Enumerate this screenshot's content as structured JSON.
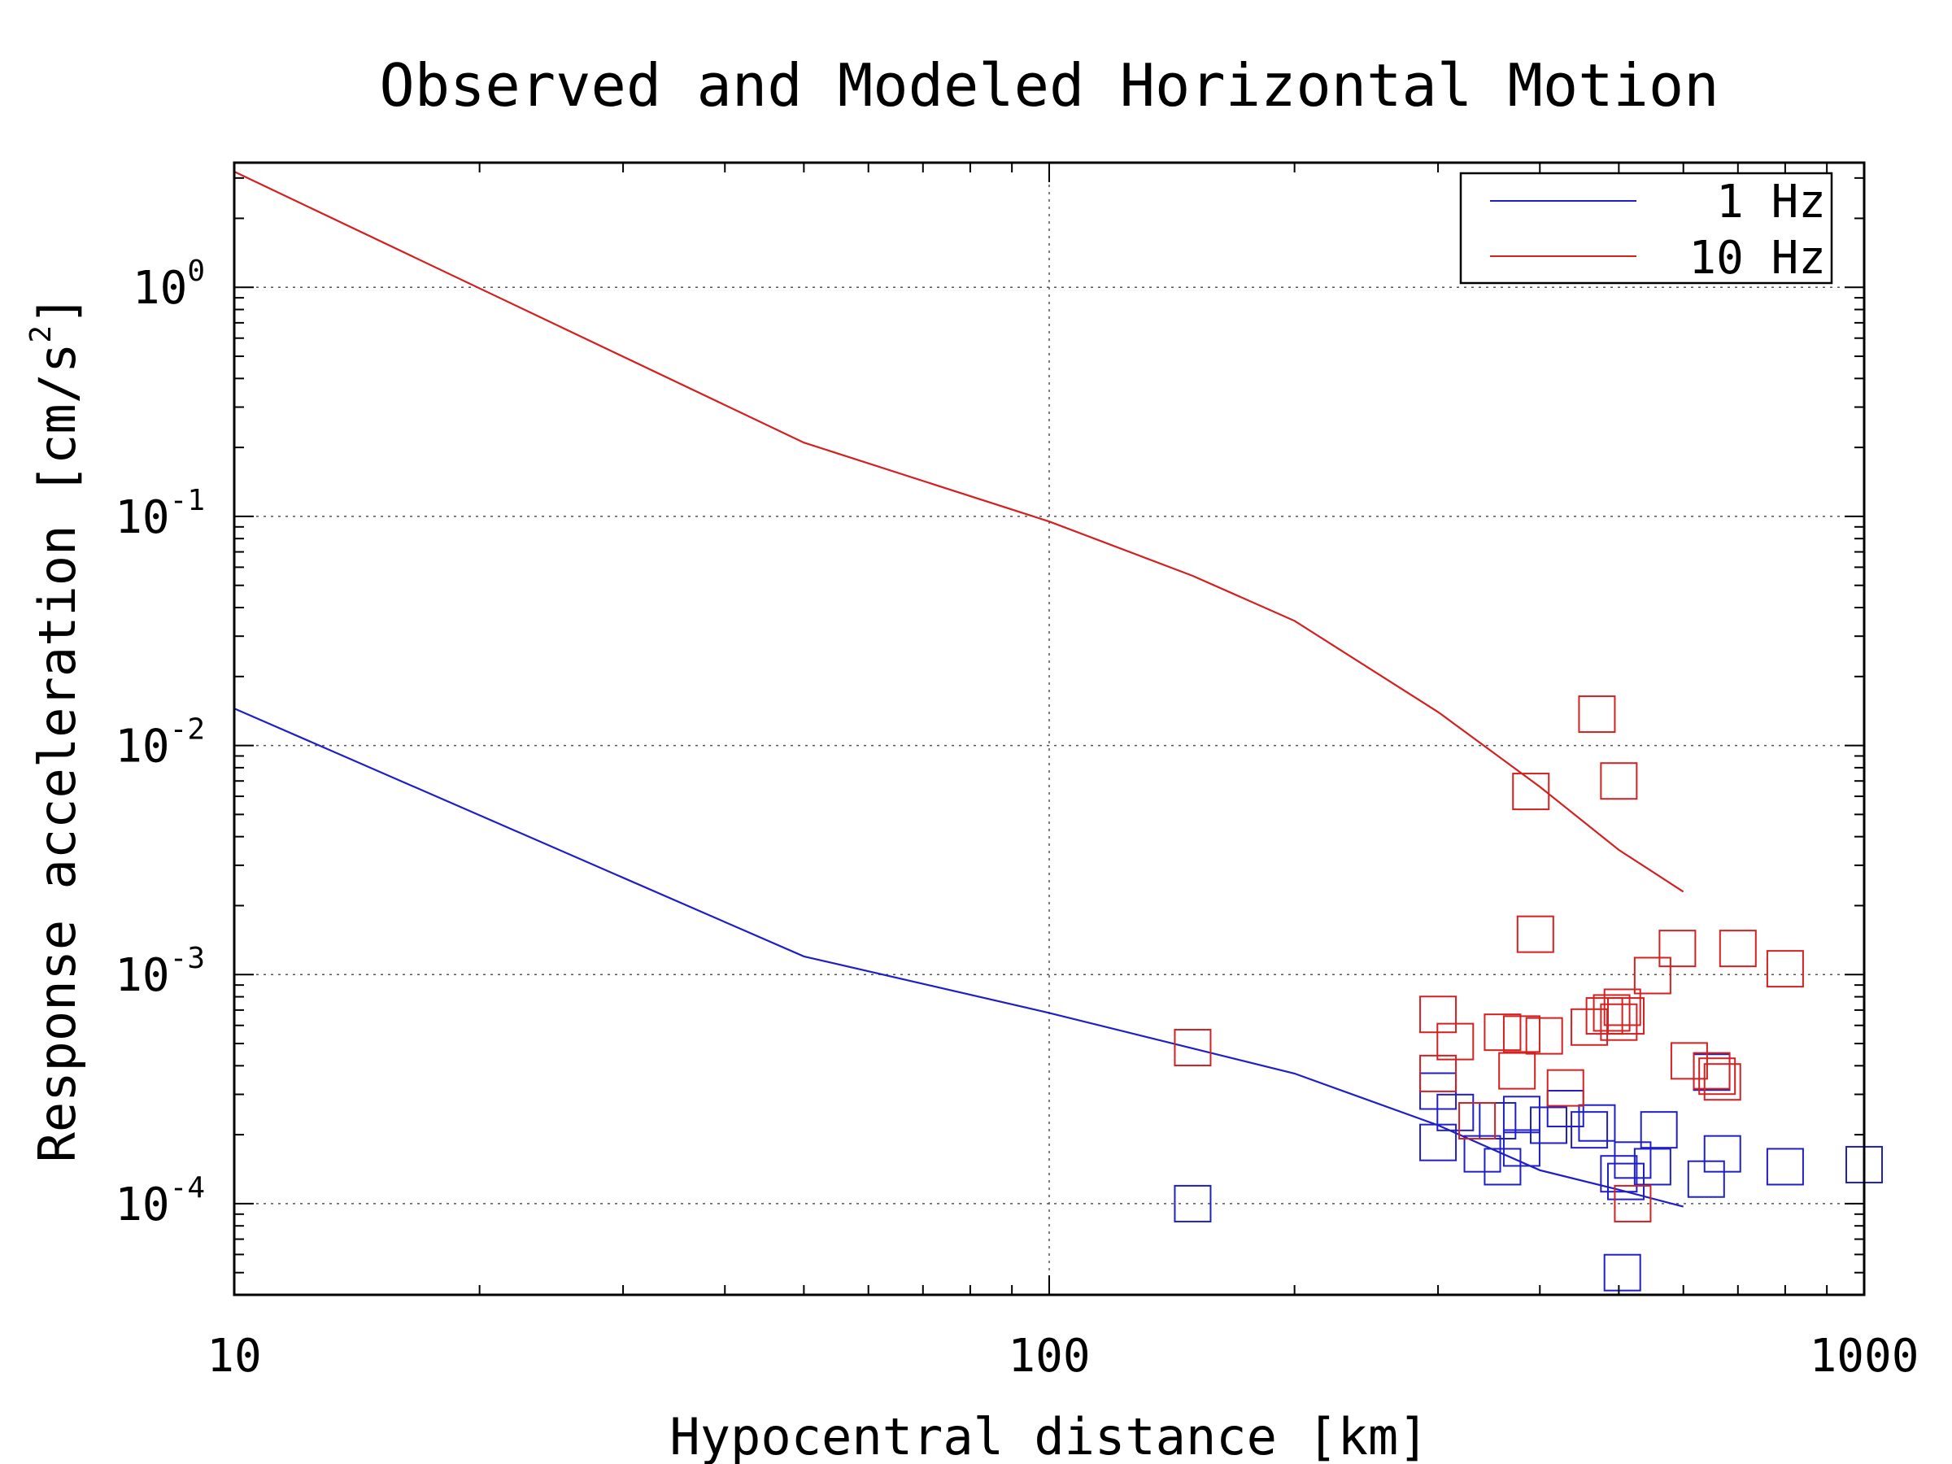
{
  "chart_data": {
    "type": "scatter",
    "title": "Observed and Modeled Horizontal Motion",
    "xlabel": "Hypocentral distance [km]",
    "ylabel": "Response acceleration [cm/s^2]",
    "ylabel_parts": {
      "main": "Response acceleration [cm/s",
      "sup": "2",
      "end": "]"
    },
    "x_scale": "log",
    "y_scale": "log",
    "xlim": [
      10,
      1000
    ],
    "ylim": [
      4e-05,
      3.5
    ],
    "x_ticks": [
      {
        "value": 10,
        "label": "10"
      },
      {
        "value": 100,
        "label": "100"
      },
      {
        "value": 1000,
        "label": "1000"
      }
    ],
    "y_ticks": [
      {
        "value": 0.0001,
        "base": "10",
        "exp": "-4"
      },
      {
        "value": 0.001,
        "base": "10",
        "exp": "-3"
      },
      {
        "value": 0.01,
        "base": "10",
        "exp": "-2"
      },
      {
        "value": 0.1,
        "base": "10",
        "exp": "-1"
      },
      {
        "value": 1,
        "base": "10",
        "exp": "0"
      }
    ],
    "grid": true,
    "legend_position": "top-right",
    "legend": [
      {
        "label": "1 Hz",
        "color": "#1f1fc8"
      },
      {
        "label": "10 Hz",
        "color": "#d42020"
      }
    ],
    "model_lines": [
      {
        "name": "1 Hz",
        "color": "#1f1fc8",
        "x": [
          10,
          50,
          100,
          200,
          300,
          400,
          500,
          600
        ],
        "y": [
          0.0145,
          0.0012,
          0.00068,
          0.00037,
          0.00022,
          0.00014,
          0.000115,
          9.7e-05
        ]
      },
      {
        "name": "10 Hz",
        "color": "#d42020",
        "x": [
          10,
          50,
          100,
          150,
          200,
          300,
          400,
          500,
          600
        ],
        "y": [
          3.2,
          0.21,
          0.095,
          0.055,
          0.035,
          0.014,
          0.0066,
          0.0035,
          0.0023
        ]
      }
    ],
    "observed": [
      {
        "name": "1 Hz",
        "color": "#1f1fc8",
        "x": [
          150,
          300,
          300,
          315,
          340,
          355,
          360,
          380,
          380,
          410,
          430,
          460,
          470,
          500,
          505,
          510,
          520,
          550,
          560,
          640,
          650,
          670,
          800,
          1000
        ],
        "y": [
          0.0001,
          0.00031,
          0.000185,
          0.00025,
          0.000165,
          0.00023,
          0.000145,
          0.000175,
          0.000245,
          0.00022,
          0.00026,
          0.00021,
          0.000225,
          0.000135,
          5e-05,
          0.000125,
          0.000155,
          0.000145,
          0.00021,
          0.000128,
          0.000375,
          0.000165,
          0.000145,
          0.000148
        ]
      },
      {
        "name": "10 Hz",
        "color": "#d42020",
        "x": [
          150,
          300,
          300,
          315,
          335,
          360,
          375,
          380,
          390,
          395,
          405,
          430,
          460,
          470,
          480,
          490,
          500,
          500,
          505,
          510,
          520,
          550,
          590,
          610,
          650,
          660,
          670,
          700,
          800
        ],
        "y": [
          0.00048,
          0.00067,
          0.00037,
          0.00051,
          0.00023,
          0.00056,
          0.00038,
          0.00055,
          0.0063,
          0.0015,
          0.00054,
          0.00032,
          0.00059,
          0.0137,
          0.00066,
          0.00068,
          0.00062,
          0.007,
          0.00072,
          0.00066,
          0.0001,
          0.00099,
          0.0013,
          0.00042,
          0.00038,
          0.00036,
          0.00034,
          0.0013,
          0.00106
        ]
      }
    ]
  }
}
